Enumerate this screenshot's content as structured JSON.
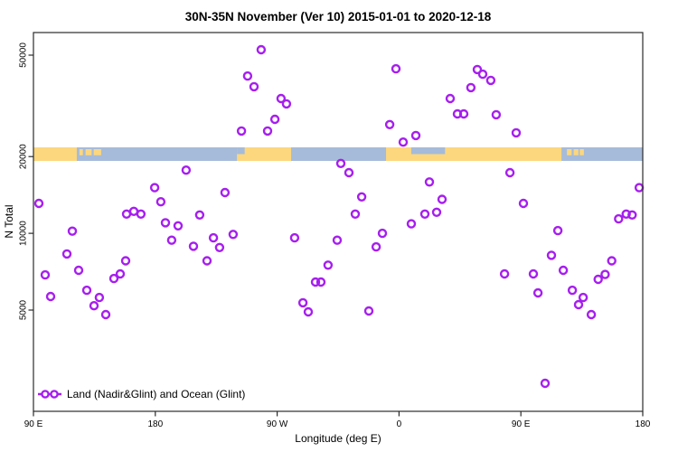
{
  "chart_data": {
    "type": "scatter",
    "title": "30N-35N November (Ver 10)   2015-01-01 to 2020-12-18",
    "xlabel": "Longitude (deg E)",
    "ylabel": "N Total",
    "legend_label": "Land (Nadir&Glint) and Ocean (Glint)",
    "x_axis": {
      "lim": [
        90,
        540
      ],
      "ticks": [
        {
          "lon": 90,
          "label": "90 E"
        },
        {
          "lon": 180,
          "label": "180"
        },
        {
          "lon": 270,
          "label": "90 W"
        },
        {
          "lon": 360,
          "label": "0"
        },
        {
          "lon": 450,
          "label": "90 E"
        },
        {
          "lon": 540,
          "label": "180"
        }
      ]
    },
    "y_axis": {
      "scale": "log",
      "lim": [
        1950,
        61500
      ],
      "ticks": [
        {
          "value": 5000,
          "label": "5000"
        },
        {
          "value": 10000,
          "label": "10000"
        },
        {
          "value": 20000,
          "label": "20000"
        },
        {
          "value": 50000,
          "label": "50000"
        }
      ]
    },
    "colors": {
      "marker": "#a61eef",
      "ocean": "#a6bbd9",
      "land": "#fcd77e",
      "frame": "#2b2b2b"
    },
    "map_band": {
      "at_value": 20000,
      "ocean_span": {
        "from": 90,
        "to": 540
      },
      "land_segments": [
        {
          "from": 90,
          "to": 122
        },
        {
          "from": 240.3,
          "to": 280.3
        },
        {
          "from": 350.4,
          "to": 480
        }
      ],
      "ocean_notches_top": [
        {
          "from": 369,
          "to": 394
        },
        {
          "from": 240.3,
          "to": 246
        }
      ],
      "island_patches": [
        {
          "from": 124,
          "to": 126.5
        },
        {
          "from": 128.5,
          "to": 133
        },
        {
          "from": 134.5,
          "to": 140
        },
        {
          "from": 484,
          "to": 487.5
        },
        {
          "from": 489,
          "to": 492.5
        },
        {
          "from": 493.5,
          "to": 496.5
        }
      ]
    },
    "points": [
      {
        "lon": 94.0,
        "n": 13100
      },
      {
        "lon": 202.8,
        "n": 17700
      },
      {
        "lon": 179.5,
        "n": 15100
      },
      {
        "lon": 184.1,
        "n": 13300
      },
      {
        "lon": 158.8,
        "n": 11900
      },
      {
        "lon": 164.1,
        "n": 12200
      },
      {
        "lon": 169.4,
        "n": 11900
      },
      {
        "lon": 187.5,
        "n": 11000
      },
      {
        "lon": 196.8,
        "n": 10700
      },
      {
        "lon": 192.1,
        "n": 9400
      },
      {
        "lon": 118.7,
        "n": 10200
      },
      {
        "lon": 114.7,
        "n": 8300
      },
      {
        "lon": 98.7,
        "n": 6870
      },
      {
        "lon": 123.4,
        "n": 7160
      },
      {
        "lon": 158.1,
        "n": 7800
      },
      {
        "lon": 149.4,
        "n": 6650
      },
      {
        "lon": 154.1,
        "n": 6930
      },
      {
        "lon": 102.7,
        "n": 5650
      },
      {
        "lon": 129.4,
        "n": 5980
      },
      {
        "lon": 134.7,
        "n": 5200
      },
      {
        "lon": 138.7,
        "n": 5600
      },
      {
        "lon": 143.4,
        "n": 4800
      },
      {
        "lon": 258.2,
        "n": 52500
      },
      {
        "lon": 248.2,
        "n": 41400
      },
      {
        "lon": 252.9,
        "n": 37600
      },
      {
        "lon": 272.9,
        "n": 33800
      },
      {
        "lon": 276.9,
        "n": 32200
      },
      {
        "lon": 268.3,
        "n": 28000
      },
      {
        "lon": 243.6,
        "n": 25200
      },
      {
        "lon": 262.9,
        "n": 25200
      },
      {
        "lon": 231.5,
        "n": 14450
      },
      {
        "lon": 212.8,
        "n": 11800
      },
      {
        "lon": 237.5,
        "n": 9900
      },
      {
        "lon": 222.9,
        "n": 9600
      },
      {
        "lon": 208.2,
        "n": 8900
      },
      {
        "lon": 227.5,
        "n": 8800
      },
      {
        "lon": 282.9,
        "n": 9600
      },
      {
        "lon": 314.3,
        "n": 9400
      },
      {
        "lon": 218.2,
        "n": 7800
      },
      {
        "lon": 307.6,
        "n": 7500
      },
      {
        "lon": 298.3,
        "n": 6440
      },
      {
        "lon": 302.3,
        "n": 6440
      },
      {
        "lon": 289.0,
        "n": 5340
      },
      {
        "lon": 293.0,
        "n": 4920
      },
      {
        "lon": 357.7,
        "n": 44200
      },
      {
        "lon": 417.8,
        "n": 43900
      },
      {
        "lon": 421.8,
        "n": 42100
      },
      {
        "lon": 427.8,
        "n": 39800
      },
      {
        "lon": 413.1,
        "n": 37300
      },
      {
        "lon": 397.8,
        "n": 33800
      },
      {
        "lon": 403.1,
        "n": 29400
      },
      {
        "lon": 407.8,
        "n": 29400
      },
      {
        "lon": 431.8,
        "n": 29200
      },
      {
        "lon": 353.1,
        "n": 26700
      },
      {
        "lon": 372.4,
        "n": 24200
      },
      {
        "lon": 363.1,
        "n": 22800
      },
      {
        "lon": 446.5,
        "n": 24800
      },
      {
        "lon": 317.0,
        "n": 18800
      },
      {
        "lon": 323.0,
        "n": 17300
      },
      {
        "lon": 382.4,
        "n": 15900
      },
      {
        "lon": 332.4,
        "n": 13900
      },
      {
        "lon": 391.8,
        "n": 13600
      },
      {
        "lon": 327.7,
        "n": 11900
      },
      {
        "lon": 379.1,
        "n": 11900
      },
      {
        "lon": 387.8,
        "n": 12100
      },
      {
        "lon": 369.1,
        "n": 10900
      },
      {
        "lon": 347.7,
        "n": 10000
      },
      {
        "lon": 343.1,
        "n": 8850
      },
      {
        "lon": 337.7,
        "n": 4960
      },
      {
        "lon": 441.9,
        "n": 17300
      },
      {
        "lon": 451.9,
        "n": 13100
      },
      {
        "lon": 537.4,
        "n": 15100
      },
      {
        "lon": 522.2,
        "n": 11400
      },
      {
        "lon": 527.8,
        "n": 11900
      },
      {
        "lon": 532.2,
        "n": 11800
      },
      {
        "lon": 477.3,
        "n": 10250
      },
      {
        "lon": 472.6,
        "n": 8200
      },
      {
        "lon": 517.1,
        "n": 7800
      },
      {
        "lon": 437.9,
        "n": 6930
      },
      {
        "lon": 459.2,
        "n": 6930
      },
      {
        "lon": 481.3,
        "n": 7160
      },
      {
        "lon": 512.2,
        "n": 6900
      },
      {
        "lon": 507.1,
        "n": 6600
      },
      {
        "lon": 462.6,
        "n": 5840
      },
      {
        "lon": 488.0,
        "n": 5980
      },
      {
        "lon": 496.0,
        "n": 5600
      },
      {
        "lon": 492.6,
        "n": 5250
      },
      {
        "lon": 502.0,
        "n": 4800
      },
      {
        "lon": 467.9,
        "n": 2580
      }
    ]
  }
}
